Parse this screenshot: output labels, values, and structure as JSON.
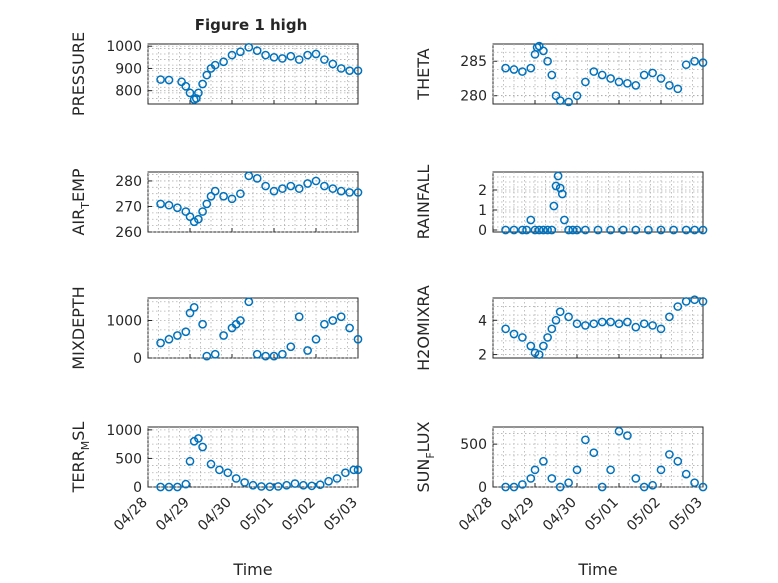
{
  "figure": {
    "title": "Figure 1 high",
    "marker_color": "#0072BD"
  },
  "chart_data": [
    {
      "type": "scatter",
      "ylabel_main": "PRESSURE",
      "ylabel_sub": "",
      "x_ticks": [
        "04/28",
        "04/29",
        "04/30",
        "05/01",
        "05/02",
        "05/03"
      ],
      "y_ticks": [
        "800",
        "900",
        "1000"
      ],
      "ylim": [
        740,
        1010
      ],
      "grid": true,
      "series": [
        {
          "x": [
            1.3,
            1.5,
            1.8,
            1.9,
            2.0,
            2.1,
            2.15,
            2.2,
            2.3,
            2.4,
            2.5,
            2.6,
            2.8,
            3.0,
            3.2,
            3.4,
            3.6,
            3.8,
            4.0,
            4.2,
            4.4,
            4.6,
            4.8,
            5.0,
            5.2,
            5.4,
            5.6,
            5.8,
            6.0
          ],
          "y": [
            850,
            848,
            840,
            820,
            790,
            760,
            765,
            790,
            830,
            870,
            900,
            915,
            930,
            960,
            975,
            995,
            980,
            960,
            950,
            945,
            955,
            940,
            960,
            965,
            940,
            920,
            900,
            890,
            890
          ]
        }
      ]
    },
    {
      "type": "scatter",
      "ylabel_main": "THETA",
      "ylabel_sub": "",
      "x_ticks": [
        "04/28",
        "04/29",
        "04/30",
        "05/01",
        "05/02",
        "05/03"
      ],
      "y_ticks": [
        "280",
        "285"
      ],
      "ylim": [
        278.8,
        287.5
      ],
      "grid": true,
      "series": [
        {
          "x": [
            1.3,
            1.5,
            1.7,
            1.9,
            2.0,
            2.05,
            2.1,
            2.2,
            2.3,
            2.4,
            2.5,
            2.6,
            2.8,
            3.0,
            3.2,
            3.4,
            3.6,
            3.8,
            4.0,
            4.2,
            4.4,
            4.6,
            4.8,
            5.0,
            5.2,
            5.4,
            5.6,
            5.8,
            6.0
          ],
          "y": [
            284,
            283.8,
            283.5,
            284,
            286,
            287,
            287.2,
            286.5,
            285,
            283,
            280,
            279.3,
            279.1,
            280,
            282,
            283.5,
            283,
            282.5,
            282,
            281.8,
            281.5,
            283,
            283.3,
            282.5,
            281.5,
            281,
            284.5,
            285,
            284.8
          ]
        }
      ]
    },
    {
      "type": "scatter",
      "ylabel_main": "AIR",
      "ylabel_sub": "T",
      "ylabel_tail": "EMP",
      "x_ticks": [
        "04/28",
        "04/29",
        "04/30",
        "05/01",
        "05/02",
        "05/03"
      ],
      "y_ticks": [
        "260",
        "270",
        "280"
      ],
      "ylim": [
        260,
        283.5
      ],
      "grid": true,
      "series": [
        {
          "x": [
            1.3,
            1.5,
            1.7,
            1.9,
            2.0,
            2.1,
            2.2,
            2.3,
            2.4,
            2.5,
            2.6,
            2.8,
            3.0,
            3.2,
            3.4,
            3.6,
            3.8,
            4.0,
            4.2,
            4.4,
            4.6,
            4.8,
            5.0,
            5.2,
            5.4,
            5.6,
            5.8,
            6.0
          ],
          "y": [
            271,
            270.5,
            269.5,
            268,
            266,
            264,
            265,
            268,
            271,
            274,
            276,
            274,
            273,
            275,
            282,
            281,
            278,
            276,
            277,
            278,
            277,
            279,
            280,
            278,
            277,
            276,
            275.5,
            275.5
          ]
        }
      ]
    },
    {
      "type": "scatter",
      "ylabel_main": "RAINFALL",
      "ylabel_sub": "",
      "x_ticks": [
        "04/28",
        "04/29",
        "04/30",
        "05/01",
        "05/02",
        "05/03"
      ],
      "y_ticks": [
        "0",
        "1",
        "2"
      ],
      "ylim": [
        -0.1,
        2.9
      ],
      "grid": true,
      "series": [
        {
          "x": [
            1.3,
            1.5,
            1.7,
            1.8,
            1.9,
            2.0,
            2.1,
            2.2,
            2.3,
            2.4,
            2.45,
            2.5,
            2.55,
            2.6,
            2.65,
            2.7,
            2.8,
            2.9,
            3.0,
            3.2,
            3.5,
            3.8,
            4.1,
            4.4,
            4.7,
            5.0,
            5.3,
            5.6,
            5.8,
            6.0
          ],
          "y": [
            0,
            0,
            0,
            0,
            0.5,
            0,
            0,
            0,
            0,
            0,
            1.2,
            2.2,
            2.7,
            2.1,
            1.8,
            0.5,
            0,
            0,
            0,
            0,
            0,
            0,
            0,
            0,
            0,
            0,
            0,
            0,
            0,
            0
          ]
        }
      ]
    },
    {
      "type": "scatter",
      "ylabel_main": "MIXDEPTH",
      "ylabel_sub": "",
      "x_ticks": [
        "04/28",
        "04/29",
        "04/30",
        "05/01",
        "05/02",
        "05/03"
      ],
      "y_ticks": [
        "0",
        "1000"
      ],
      "ylim": [
        0,
        1600
      ],
      "grid": true,
      "series": [
        {
          "x": [
            1.3,
            1.5,
            1.7,
            1.9,
            2.0,
            2.1,
            2.3,
            2.4,
            2.6,
            2.8,
            3.0,
            3.1,
            3.2,
            3.4,
            3.6,
            3.8,
            4.0,
            4.2,
            4.4,
            4.6,
            4.8,
            5.0,
            5.2,
            5.4,
            5.6,
            5.8,
            6.0
          ],
          "y": [
            400,
            500,
            600,
            700,
            1200,
            1350,
            900,
            50,
            100,
            600,
            800,
            900,
            1000,
            1500,
            100,
            50,
            50,
            100,
            300,
            1100,
            200,
            500,
            900,
            1000,
            1100,
            800,
            500
          ]
        }
      ]
    },
    {
      "type": "scatter",
      "ylabel_main": "H2OMIXRA",
      "ylabel_sub": "",
      "x_ticks": [
        "04/28",
        "04/29",
        "04/30",
        "05/01",
        "05/02",
        "05/03"
      ],
      "y_ticks": [
        "2",
        "4"
      ],
      "ylim": [
        1.8,
        5.3
      ],
      "grid": true,
      "series": [
        {
          "x": [
            1.3,
            1.5,
            1.7,
            1.9,
            2.0,
            2.1,
            2.2,
            2.3,
            2.4,
            2.5,
            2.6,
            2.8,
            3.0,
            3.2,
            3.4,
            3.6,
            3.8,
            4.0,
            4.2,
            4.4,
            4.6,
            4.8,
            5.0,
            5.2,
            5.4,
            5.6,
            5.8,
            6.0
          ],
          "y": [
            3.5,
            3.2,
            3.0,
            2.5,
            2.1,
            2.0,
            2.5,
            3.0,
            3.5,
            4.0,
            4.5,
            4.2,
            3.8,
            3.7,
            3.8,
            3.9,
            3.9,
            3.8,
            3.9,
            3.6,
            3.8,
            3.7,
            3.5,
            4.2,
            4.8,
            5.1,
            5.2,
            5.1
          ]
        }
      ]
    },
    {
      "type": "scatter",
      "ylabel_main": "TERR",
      "ylabel_sub": "M",
      "ylabel_tail": "SL",
      "x_ticks": [
        "04/28",
        "04/29",
        "04/30",
        "05/01",
        "05/02",
        "05/03"
      ],
      "y_ticks": [
        "0",
        "500",
        "1000"
      ],
      "ylim": [
        0,
        1050
      ],
      "grid": true,
      "series": [
        {
          "x": [
            1.3,
            1.5,
            1.7,
            1.9,
            2.0,
            2.1,
            2.2,
            2.3,
            2.5,
            2.7,
            2.9,
            3.1,
            3.3,
            3.5,
            3.7,
            3.9,
            4.1,
            4.3,
            4.5,
            4.7,
            4.9,
            5.1,
            5.3,
            5.5,
            5.7,
            5.9,
            6.0
          ],
          "y": [
            0,
            0,
            0,
            50,
            450,
            800,
            850,
            700,
            400,
            300,
            250,
            150,
            80,
            30,
            10,
            5,
            10,
            30,
            60,
            30,
            20,
            40,
            100,
            150,
            250,
            300,
            300
          ]
        }
      ]
    },
    {
      "type": "scatter",
      "ylabel_main": "SUN",
      "ylabel_sub": "F",
      "ylabel_tail": "LUX",
      "x_ticks": [
        "04/28",
        "04/29",
        "04/30",
        "05/01",
        "05/02",
        "05/03"
      ],
      "y_ticks": [
        "0",
        "500"
      ],
      "ylim": [
        0,
        700
      ],
      "grid": true,
      "series": [
        {
          "x": [
            1.3,
            1.5,
            1.7,
            1.9,
            2.0,
            2.2,
            2.4,
            2.6,
            2.8,
            3.0,
            3.2,
            3.4,
            3.6,
            3.8,
            4.0,
            4.2,
            4.4,
            4.6,
            4.8,
            5.0,
            5.2,
            5.4,
            5.6,
            5.8,
            6.0
          ],
          "y": [
            0,
            0,
            30,
            100,
            200,
            300,
            100,
            0,
            50,
            200,
            550,
            400,
            0,
            200,
            650,
            600,
            100,
            0,
            20,
            200,
            380,
            300,
            150,
            50,
            0
          ]
        }
      ]
    }
  ]
}
